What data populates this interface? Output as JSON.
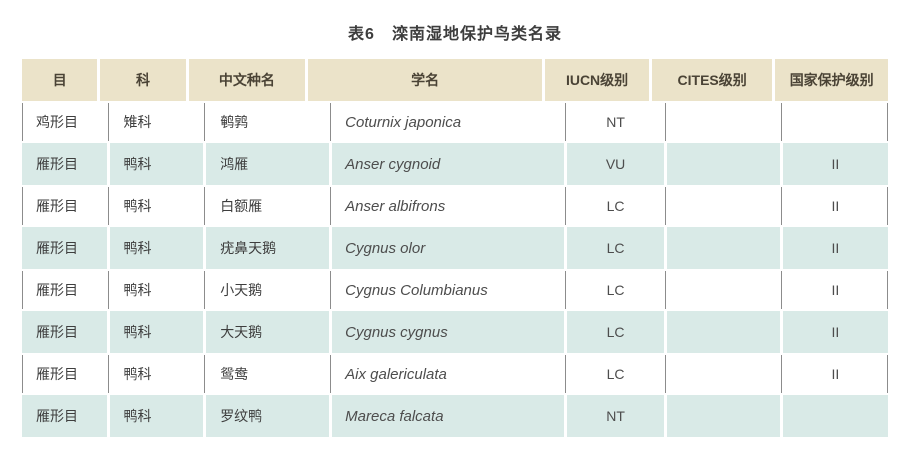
{
  "page": {
    "title": "表6　滦南湿地保护鸟类名录"
  },
  "table": {
    "columns": [
      "目",
      "科",
      "中文种名",
      "学名",
      "IUCN级别",
      "CITES级别",
      "国家保护级别"
    ],
    "rows": [
      {
        "order": "鸡形目",
        "family": "雉科",
        "cn_name": "鹌鹑",
        "sci_name": "Coturnix japonica",
        "iucn": "NT",
        "cites": "",
        "national": ""
      },
      {
        "order": "雁形目",
        "family": "鸭科",
        "cn_name": "鸿雁",
        "sci_name": "Anser cygnoid",
        "iucn": "VU",
        "cites": "",
        "national": "II"
      },
      {
        "order": "雁形目",
        "family": "鸭科",
        "cn_name": "白额雁",
        "sci_name": "Anser albifrons",
        "iucn": "LC",
        "cites": "",
        "national": "II"
      },
      {
        "order": "雁形目",
        "family": "鸭科",
        "cn_name": "疣鼻天鹅",
        "sci_name": "Cygnus olor",
        "iucn": "LC",
        "cites": "",
        "national": "II"
      },
      {
        "order": "雁形目",
        "family": "鸭科",
        "cn_name": "小天鹅",
        "sci_name": "Cygnus Columbianus",
        "iucn": "LC",
        "cites": "",
        "national": "II"
      },
      {
        "order": "雁形目",
        "family": "鸭科",
        "cn_name": "大天鹅",
        "sci_name": "Cygnus cygnus",
        "iucn": "LC",
        "cites": "",
        "national": "II"
      },
      {
        "order": "雁形目",
        "family": "鸭科",
        "cn_name": "鸳鸯",
        "sci_name": "Aix galericulata",
        "iucn": "LC",
        "cites": "",
        "national": "II"
      },
      {
        "order": "雁形目",
        "family": "鸭科",
        "cn_name": "罗纹鸭",
        "sci_name": "Mareca falcata",
        "iucn": "NT",
        "cites": "",
        "national": ""
      }
    ],
    "colors": {
      "header_bg": "#ebe3c9",
      "alt_row_bg": "#d9eae7",
      "separator_line": "#8c8c8c",
      "header_text": "#4a4335"
    }
  }
}
